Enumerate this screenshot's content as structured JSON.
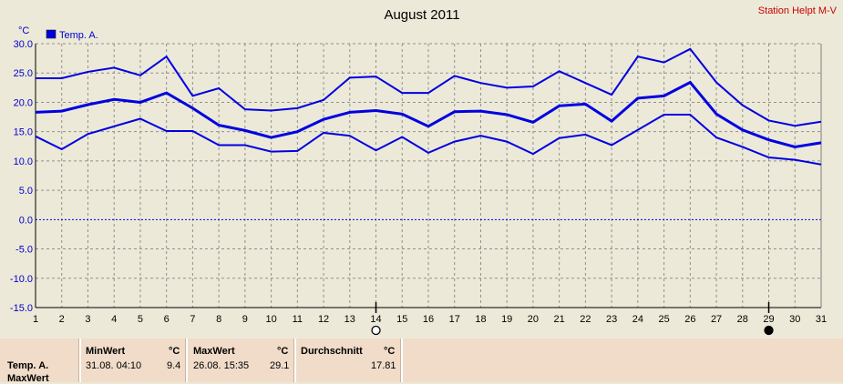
{
  "chart_data": {
    "type": "line",
    "title": "August 2011",
    "station": "Station Helpt M-V",
    "y_unit": "°C",
    "legend": "Temp. A.",
    "x": [
      1,
      2,
      3,
      4,
      5,
      6,
      7,
      8,
      9,
      10,
      11,
      12,
      13,
      14,
      15,
      16,
      17,
      18,
      19,
      20,
      21,
      22,
      23,
      24,
      25,
      26,
      27,
      28,
      29,
      30,
      31
    ],
    "ylim": [
      -15,
      30
    ],
    "yticks": [
      "-15.0",
      "-10.0",
      "-5.0",
      "0.0",
      "5.0",
      "10.0",
      "15.0",
      "20.0",
      "25.0",
      "30.0"
    ],
    "series": [
      {
        "role": "max",
        "values": [
          24.1,
          24.1,
          25.2,
          25.9,
          24.6,
          27.8,
          21.1,
          22.4,
          18.8,
          18.6,
          19.0,
          20.4,
          24.2,
          24.4,
          21.6,
          21.6,
          24.5,
          23.3,
          22.5,
          22.7,
          25.3,
          23.3,
          21.3,
          27.8,
          26.8,
          29.1,
          23.4,
          19.5,
          16.9,
          16.0,
          16.7
        ]
      },
      {
        "role": "avg",
        "values": [
          18.3,
          18.5,
          19.6,
          20.5,
          20.0,
          21.6,
          19.0,
          16.1,
          15.2,
          14.0,
          15.0,
          17.1,
          18.3,
          18.6,
          18.0,
          15.9,
          18.4,
          18.5,
          17.9,
          16.6,
          19.4,
          19.7,
          16.8,
          20.7,
          21.1,
          23.4,
          18.0,
          15.3,
          13.6,
          12.4,
          13.1
        ]
      },
      {
        "role": "min",
        "values": [
          14.2,
          12.0,
          14.6,
          15.9,
          17.2,
          15.1,
          15.1,
          12.7,
          12.7,
          11.6,
          11.7,
          14.8,
          14.3,
          11.8,
          14.1,
          11.4,
          13.3,
          14.3,
          13.3,
          11.2,
          13.9,
          14.5,
          12.7,
          15.3,
          17.9,
          17.9,
          14.0,
          12.4,
          10.6,
          10.2,
          9.4
        ]
      }
    ],
    "line_color": "#0000e0",
    "moon_markers": [
      {
        "day": 14,
        "phase": "full-moon"
      },
      {
        "day": 29,
        "phase": "new-moon"
      }
    ],
    "grid": true
  },
  "stats": {
    "row_label": "Temp. A.",
    "row_label_2": "MaxWert",
    "min_header": "MinWert",
    "min_unit": "°C",
    "min_time": "31.08.  04:10",
    "min_value": "9.4",
    "max_header": "MaxWert",
    "max_unit": "°C",
    "max_time": "26.08.  15:35",
    "max_value": "29.1",
    "avg_header": "Durchschnitt",
    "avg_unit": "°C",
    "avg_value": "17.81"
  }
}
